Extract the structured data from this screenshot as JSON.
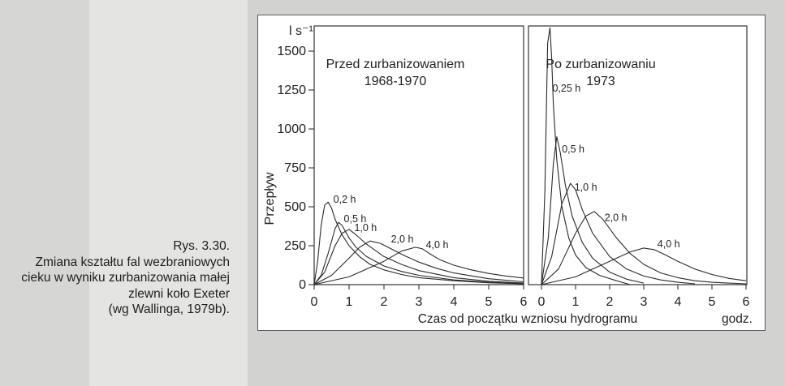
{
  "caption": {
    "figure_no": "Rys. 3.30.",
    "lines": [
      "Zmiana kształtu fal wezbraniowych",
      "cieku w wyniku zurbanizowania małej",
      "zlewni koło Exeter",
      "(wg Wallinga, 1979b)."
    ]
  },
  "chart_data": {
    "type": "line",
    "ylabel": "Przepływ",
    "yunit": "l s⁻¹",
    "xlabel": "Czas od początku wzniosu hydrogramu",
    "xunit": "godz.",
    "yticks": [
      0,
      250,
      500,
      750,
      1000,
      1250,
      1500
    ],
    "xticks": [
      0,
      1,
      2,
      3,
      4,
      5,
      6
    ],
    "ylim": [
      0,
      1650
    ],
    "panels": [
      {
        "title": "Przed zurbanizowaniem",
        "subtitle": "1968-1970",
        "xlim": [
          0,
          6
        ],
        "series": [
          {
            "name": "0,2 h",
            "x": [
              0,
              0.1,
              0.2,
              0.3,
              0.4,
              0.5,
              0.6,
              0.8,
              1.0,
              1.3,
              1.6,
              2.0,
              2.5,
              3.0,
              4.0,
              5.0,
              6.0
            ],
            "y": [
              0,
              150,
              380,
              510,
              530,
              490,
              420,
              320,
              250,
              180,
              130,
              95,
              65,
              45,
              25,
              12,
              5
            ]
          },
          {
            "name": "0,5 h",
            "x": [
              0,
              0.2,
              0.4,
              0.6,
              0.7,
              0.8,
              0.9,
              1.0,
              1.2,
              1.5,
              2.0,
              2.5,
              3.0,
              4.0,
              5.0,
              6.0
            ],
            "y": [
              0,
              60,
              200,
              360,
              400,
              380,
              340,
              300,
              240,
              180,
              120,
              85,
              60,
              30,
              15,
              6
            ]
          },
          {
            "name": "1,0 h",
            "x": [
              0,
              0.3,
              0.6,
              0.8,
              1.0,
              1.2,
              1.5,
              2.0,
              2.5,
              3.0,
              4.0,
              5.0,
              6.0
            ],
            "y": [
              0,
              80,
              250,
              330,
              355,
              320,
              260,
              180,
              130,
              90,
              45,
              22,
              10
            ]
          },
          {
            "name": "2,0 h",
            "x": [
              0,
              0.5,
              1.0,
              1.3,
              1.6,
              1.9,
              2.2,
              2.6,
              3.0,
              3.5,
              4.0,
              5.0,
              6.0
            ],
            "y": [
              0,
              60,
              170,
              240,
              280,
              265,
              230,
              185,
              145,
              105,
              75,
              38,
              18
            ]
          },
          {
            "name": "4,0 h",
            "x": [
              0,
              1.0,
              2.0,
              2.5,
              2.9,
              3.1,
              3.3,
              3.6,
              4.0,
              4.5,
              5.0,
              5.5,
              6.0
            ],
            "y": [
              0,
              50,
              150,
              215,
              240,
              230,
              200,
              160,
              125,
              95,
              72,
              55,
              42
            ]
          }
        ]
      },
      {
        "title": "Po zurbanizowaniu",
        "subtitle": "1973",
        "xlim": [
          0,
          6
        ],
        "series": [
          {
            "name": "0,25 h",
            "x": [
              0,
              0.1,
              0.18,
              0.25,
              0.3,
              0.35,
              0.45,
              0.6,
              0.8,
              1.0,
              1.3,
              1.7,
              2.2,
              2.6
            ],
            "y": [
              0,
              600,
              1550,
              1650,
              1450,
              1150,
              800,
              500,
              300,
              190,
              110,
              60,
              25,
              0
            ]
          },
          {
            "name": "0,5 h",
            "x": [
              0,
              0.2,
              0.35,
              0.45,
              0.55,
              0.7,
              0.9,
              1.2,
              1.5,
              2.0,
              2.5,
              3.0
            ],
            "y": [
              0,
              300,
              780,
              950,
              850,
              640,
              440,
              270,
              170,
              80,
              35,
              10
            ]
          },
          {
            "name": "1,0 h",
            "x": [
              0,
              0.3,
              0.6,
              0.85,
              1.0,
              1.2,
              1.5,
              2.0,
              2.5,
              3.0,
              3.5,
              4.0,
              4.5
            ],
            "y": [
              0,
              180,
              520,
              650,
              610,
              480,
              330,
              180,
              100,
              55,
              30,
              15,
              5
            ]
          },
          {
            "name": "2,0 h",
            "x": [
              0,
              0.5,
              1.0,
              1.3,
              1.55,
              1.8,
              2.2,
              2.6,
              3.0,
              3.5,
              4.0,
              4.5,
              5.0,
              6.0
            ],
            "y": [
              0,
              100,
              330,
              440,
              470,
              420,
              300,
              200,
              130,
              75,
              45,
              25,
              15,
              5
            ]
          },
          {
            "name": "4,0 h",
            "x": [
              0,
              1.0,
              2.0,
              2.6,
              3.0,
              3.3,
              3.6,
              4.0,
              4.5,
              5.0,
              5.5,
              6.0
            ],
            "y": [
              0,
              50,
              150,
              210,
              235,
              225,
              195,
              150,
              100,
              65,
              40,
              25
            ]
          }
        ]
      }
    ]
  }
}
